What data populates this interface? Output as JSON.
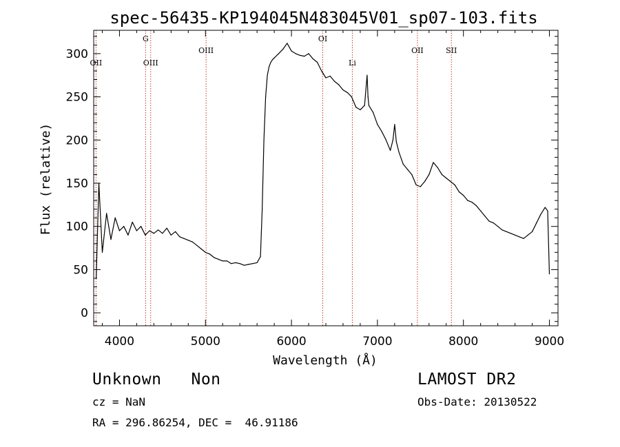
{
  "chart_data": {
    "type": "line",
    "title": "spec-56435-KP194045N483045V01_sp07-103.fits",
    "xlabel": "Wavelength (Å)",
    "ylabel": "Flux (relative)",
    "xlim": [
      3700,
      9100
    ],
    "ylim": [
      -15,
      327
    ],
    "xticks": [
      4000,
      5000,
      6000,
      7000,
      8000,
      9000
    ],
    "yticks": [
      0,
      50,
      100,
      150,
      200,
      250,
      300
    ],
    "grid": false,
    "line_color": "#000000",
    "marker_color": "#c0392b",
    "series": [
      {
        "x": [
          3730,
          3760,
          3800,
          3850,
          3900,
          3950,
          4000,
          4050,
          4100,
          4150,
          4200,
          4250,
          4300,
          4350,
          4400,
          4450,
          4500,
          4550,
          4600,
          4650,
          4700,
          4750,
          4800,
          4850,
          4900,
          4950,
          5000,
          5050,
          5100,
          5150,
          5200,
          5250,
          5300,
          5350,
          5400,
          5450,
          5500,
          5550,
          5600,
          5640,
          5660,
          5680,
          5700,
          5720,
          5740,
          5760,
          5780,
          5800,
          5850,
          5900,
          5950,
          6000,
          6050,
          6100,
          6150,
          6200,
          6250,
          6300,
          6350,
          6400,
          6450,
          6500,
          6550,
          6600,
          6650,
          6700,
          6750,
          6800,
          6850,
          6880,
          6890,
          6900,
          6950,
          7000,
          7050,
          7100,
          7150,
          7180,
          7200,
          7220,
          7250,
          7300,
          7350,
          7400,
          7450,
          7500,
          7550,
          7600,
          7650,
          7700,
          7750,
          7800,
          7850,
          7900,
          7950,
          8000,
          8050,
          8100,
          8150,
          8200,
          8250,
          8300,
          8350,
          8400,
          8450,
          8500,
          8550,
          8600,
          8650,
          8700,
          8750,
          8800,
          8850,
          8900,
          8950,
          8980,
          9000
        ],
        "y": [
          40,
          150,
          70,
          115,
          85,
          110,
          95,
          100,
          90,
          105,
          95,
          100,
          90,
          95,
          92,
          96,
          92,
          98,
          90,
          94,
          88,
          86,
          84,
          82,
          78,
          74,
          70,
          68,
          64,
          62,
          60,
          60,
          57,
          58,
          57,
          55,
          56,
          57,
          58,
          65,
          120,
          200,
          250,
          275,
          285,
          290,
          293,
          295,
          300,
          305,
          312,
          303,
          300,
          298,
          297,
          300,
          294,
          290,
          280,
          272,
          274,
          268,
          264,
          258,
          255,
          250,
          238,
          235,
          240,
          275,
          250,
          240,
          232,
          218,
          210,
          200,
          188,
          200,
          218,
          198,
          186,
          172,
          166,
          160,
          148,
          146,
          152,
          160,
          174,
          168,
          160,
          156,
          152,
          148,
          140,
          136,
          130,
          128,
          124,
          118,
          112,
          106,
          104,
          100,
          96,
          94,
          92,
          90,
          88,
          86,
          90,
          94,
          104,
          114,
          122,
          118,
          45
        ]
      }
    ],
    "line_markers": [
      {
        "label": "OII",
        "x": 3727,
        "row": 2
      },
      {
        "label": "G",
        "x": 4304,
        "row": 0
      },
      {
        "label": "OIII",
        "x": 4363,
        "row": 2
      },
      {
        "label": "OIII",
        "x": 5007,
        "row": 1
      },
      {
        "label": "OI",
        "x": 6364,
        "row": 0
      },
      {
        "label": "Li",
        "x": 6708,
        "row": 2
      },
      {
        "label": "OII",
        "x": 7465,
        "row": 1
      },
      {
        "label": "SII",
        "x": 7860,
        "row": 1
      }
    ]
  },
  "info": {
    "classification": "Unknown   Non",
    "survey": "LAMOST DR2",
    "redshift": "cz = NaN",
    "obs_date": "Obs-Date: 20130522",
    "coords": "RA = 296.86254, DEC =  46.91186"
  }
}
